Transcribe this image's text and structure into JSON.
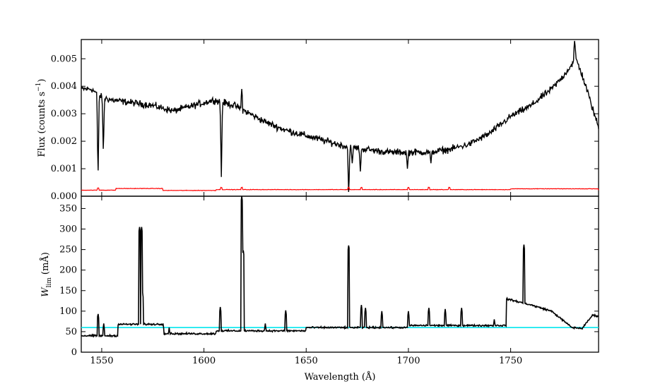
{
  "chart_data": [
    {
      "type": "line",
      "panel": "top",
      "ylabel_main": "Flux (counts s",
      "ylabel_sup": "−1",
      "ylabel_close": ")",
      "xlim": [
        1540,
        1793
      ],
      "ylim": [
        0.0,
        0.0057
      ],
      "yticks": [
        0.0,
        0.001,
        0.002,
        0.003,
        0.004,
        0.005
      ],
      "ytick_labels": [
        "0.000",
        "0.001",
        "0.002",
        "0.003",
        "0.004",
        "0.005"
      ],
      "series": [
        {
          "color": "#000000",
          "baseline": [
            [
              1540,
              0.0039
            ],
            [
              1545,
              0.0039
            ],
            [
              1550,
              0.0036
            ],
            [
              1555,
              0.0035
            ],
            [
              1560,
              0.00345
            ],
            [
              1565,
              0.0034
            ],
            [
              1570,
              0.00335
            ],
            [
              1575,
              0.0033
            ],
            [
              1580,
              0.0032
            ],
            [
              1585,
              0.0031
            ],
            [
              1590,
              0.0032
            ],
            [
              1595,
              0.0033
            ],
            [
              1600,
              0.0034
            ],
            [
              1605,
              0.0035
            ],
            [
              1610,
              0.0034
            ],
            [
              1615,
              0.0033
            ],
            [
              1620,
              0.0031
            ],
            [
              1625,
              0.0029
            ],
            [
              1630,
              0.0027
            ],
            [
              1640,
              0.0024
            ],
            [
              1650,
              0.0022
            ],
            [
              1660,
              0.002
            ],
            [
              1670,
              0.0018
            ],
            [
              1680,
              0.0017
            ],
            [
              1690,
              0.0016
            ],
            [
              1700,
              0.0016
            ],
            [
              1710,
              0.0016
            ],
            [
              1720,
              0.0017
            ],
            [
              1730,
              0.0019
            ],
            [
              1740,
              0.0023
            ],
            [
              1750,
              0.0029
            ],
            [
              1760,
              0.0033
            ],
            [
              1770,
              0.0039
            ],
            [
              1775,
              0.0043
            ],
            [
              1780,
              0.0048
            ],
            [
              1782,
              0.005
            ],
            [
              1785,
              0.0044
            ],
            [
              1788,
              0.0037
            ],
            [
              1790,
              0.0032
            ],
            [
              1793,
              0.0025
            ]
          ],
          "noise": 0.00018,
          "absorption_lines": [
            [
              1548.2,
              0.00068
            ],
            [
              1550.8,
              0.00155
            ],
            [
              1608.5,
              0.0007
            ],
            [
              1670.8,
              0.0
            ],
            [
              1672.5,
              0.0012
            ],
            [
              1676.5,
              0.0009
            ],
            [
              1699.5,
              0.001
            ],
            [
              1711.0,
              0.0012
            ]
          ],
          "peaks": [
            [
              1618.5,
              0.0039
            ],
            [
              1781.3,
              0.0057
            ]
          ]
        },
        {
          "color": "#ff0000",
          "segments": [
            [
              1540,
              1557,
              0.00022
            ],
            [
              1557,
              1580,
              0.00028
            ],
            [
              1580,
              1606,
              0.00021
            ],
            [
              1606,
              1750,
              0.00024
            ],
            [
              1750,
              1793,
              0.00027
            ]
          ],
          "spikes": [
            1548.2,
            1608.5,
            1618.5,
            1670.8,
            1677,
            1700,
            1710,
            1720
          ]
        }
      ]
    },
    {
      "type": "line",
      "panel": "bottom",
      "xlabel": "Wavelength (Å)",
      "ylabel_main": "W",
      "ylabel_sub": "lim",
      "ylabel_unit": "(mÅ)",
      "xlim": [
        1540,
        1793
      ],
      "ylim": [
        0,
        380
      ],
      "xticks": [
        1550,
        1600,
        1650,
        1700,
        1750
      ],
      "xtick_labels": [
        "1550",
        "1600",
        "1650",
        "1700",
        "1750"
      ],
      "yticks": [
        0,
        50,
        100,
        150,
        200,
        250,
        300,
        350
      ],
      "ytick_labels": [
        "0",
        "50",
        "100",
        "150",
        "200",
        "250",
        "300",
        "350"
      ],
      "threshold": {
        "value": 60,
        "color": "#00e5ee"
      },
      "series": [
        {
          "color": "#000000",
          "segments": [
            [
              1540,
              1558,
              40
            ],
            [
              1558,
              1580,
              68
            ],
            [
              1580,
              1606,
              45
            ],
            [
              1606,
              1650,
              52
            ],
            [
              1650,
              1700,
              60
            ],
            [
              1700,
              1748,
              65
            ]
          ],
          "ramp": [
            [
              1748,
              130
            ],
            [
              1760,
              115
            ],
            [
              1770,
              100
            ],
            [
              1780,
              60
            ],
            [
              1785,
              58
            ],
            [
              1790,
              90
            ],
            [
              1793,
              88
            ]
          ],
          "noise": 3,
          "spikes": [
            [
              1548.2,
              95
            ],
            [
              1551,
              70
            ],
            [
              1568.5,
              305
            ],
            [
              1569.5,
              305
            ],
            [
              1570,
              145
            ],
            [
              1580,
              70
            ],
            [
              1583,
              60
            ],
            [
              1608,
              110
            ],
            [
              1618.5,
              380
            ],
            [
              1619.2,
              250
            ],
            [
              1630,
              70
            ],
            [
              1640,
              102
            ],
            [
              1670.8,
              262
            ],
            [
              1677,
              115
            ],
            [
              1679,
              108
            ],
            [
              1687,
              100
            ],
            [
              1700,
              100
            ],
            [
              1710,
              108
            ],
            [
              1718,
              105
            ],
            [
              1726,
              108
            ],
            [
              1742,
              80
            ],
            [
              1756.5,
              262
            ]
          ]
        }
      ]
    }
  ]
}
